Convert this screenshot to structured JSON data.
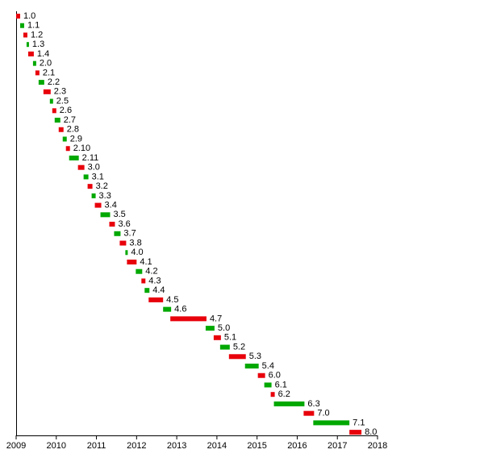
{
  "chart_data": {
    "type": "gantt",
    "categories": [
      "1.0",
      "1.1",
      "1.2",
      "1.3",
      "1.4",
      "2.0",
      "2.1",
      "2.2",
      "2.3",
      "2.5",
      "2.6",
      "2.7",
      "2.8",
      "2.9",
      "2.10",
      "2.11",
      "3.0",
      "3.1",
      "3.2",
      "3.3",
      "3.4",
      "3.5",
      "3.6",
      "3.7",
      "3.8",
      "4.0",
      "4.1",
      "4.2",
      "4.3",
      "4.4",
      "4.5",
      "4.6",
      "4.7",
      "5.0",
      "5.1",
      "5.2",
      "5.3",
      "5.4",
      "6.0",
      "6.1",
      "6.2",
      "6.3",
      "7.0",
      "7.1",
      "8.0"
    ],
    "start": [
      2009.0,
      2009.1,
      2009.18,
      2009.26,
      2009.3,
      2009.42,
      2009.48,
      2009.56,
      2009.68,
      2009.84,
      2009.9,
      2009.96,
      2010.06,
      2010.16,
      2010.24,
      2010.32,
      2010.54,
      2010.68,
      2010.78,
      2010.88,
      2010.96,
      2011.1,
      2011.32,
      2011.44,
      2011.58,
      2011.72,
      2011.76,
      2011.98,
      2012.12,
      2012.2,
      2012.3,
      2012.66,
      2012.84,
      2013.72,
      2013.92,
      2014.08,
      2014.3,
      2014.7,
      2015.02,
      2015.18,
      2015.34,
      2015.42,
      2016.16,
      2016.4,
      2017.3
    ],
    "end": [
      2009.1,
      2009.2,
      2009.28,
      2009.32,
      2009.44,
      2009.5,
      2009.58,
      2009.7,
      2009.86,
      2009.92,
      2010.0,
      2010.1,
      2010.18,
      2010.26,
      2010.34,
      2010.56,
      2010.7,
      2010.8,
      2010.9,
      2010.98,
      2011.12,
      2011.34,
      2011.46,
      2011.6,
      2011.74,
      2011.78,
      2012.0,
      2012.14,
      2012.22,
      2012.32,
      2012.66,
      2012.86,
      2013.74,
      2013.94,
      2014.1,
      2014.32,
      2014.72,
      2015.04,
      2015.2,
      2015.36,
      2015.44,
      2016.18,
      2016.42,
      2017.3,
      2017.6
    ],
    "colors": [
      "#e8000b",
      "#00a800"
    ],
    "xlim": [
      2009,
      2018
    ],
    "xticks": [
      2009,
      2010,
      2011,
      2012,
      2013,
      2014,
      2015,
      2016,
      2017,
      2018
    ]
  }
}
